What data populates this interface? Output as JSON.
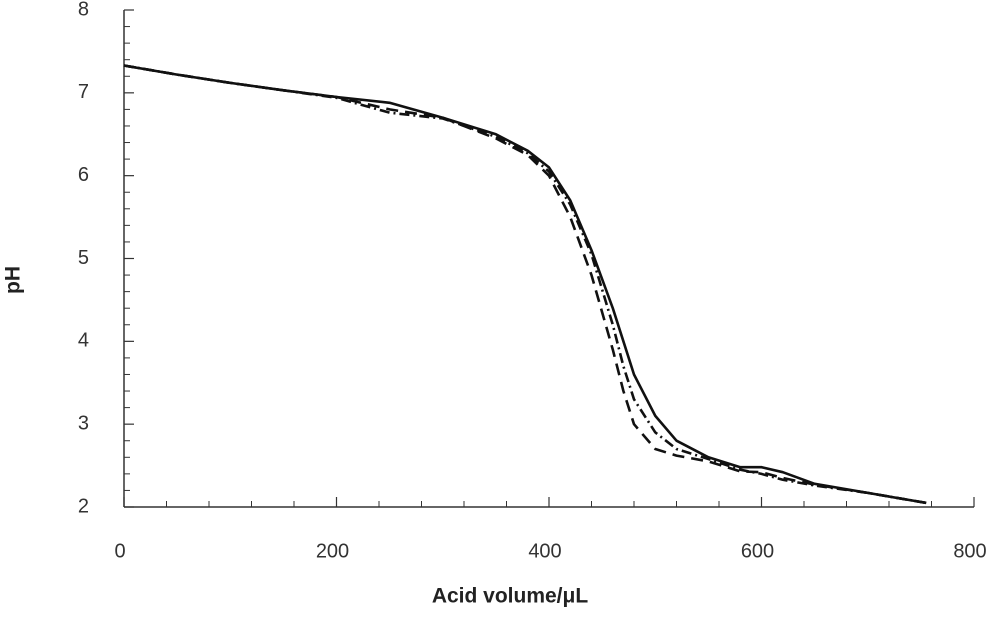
{
  "chart_data": {
    "type": "line",
    "x_label": "Acid volume/μL",
    "y_label": "pH",
    "x": [
      0,
      50,
      100,
      150,
      200,
      250,
      300,
      350,
      380,
      400,
      420,
      440,
      460,
      470,
      480,
      500,
      520,
      550,
      580,
      600,
      620,
      650,
      700,
      755
    ],
    "series": [
      {
        "color": "#111111",
        "dash": "none",
        "values": [
          7.33,
          7.22,
          7.12,
          7.03,
          6.95,
          6.88,
          6.7,
          6.5,
          6.3,
          6.1,
          5.7,
          5.1,
          4.4,
          4.0,
          3.6,
          3.1,
          2.8,
          2.6,
          2.48,
          2.48,
          2.42,
          2.28,
          2.17,
          2.05
        ]
      },
      {
        "color": "#111111",
        "dash": "12 7",
        "values": [
          7.33,
          7.22,
          7.12,
          7.03,
          6.95,
          6.8,
          6.7,
          6.45,
          6.25,
          6.0,
          5.5,
          4.8,
          3.9,
          3.4,
          3.0,
          2.7,
          2.62,
          2.55,
          2.43,
          2.42,
          2.35,
          2.27,
          2.17,
          2.05
        ]
      },
      {
        "color": "#111111",
        "dash": "10 4 2 4",
        "values": [
          7.33,
          7.22,
          7.12,
          7.03,
          6.94,
          6.76,
          6.69,
          6.47,
          6.27,
          6.05,
          5.65,
          5.05,
          4.2,
          3.7,
          3.3,
          2.9,
          2.7,
          2.58,
          2.45,
          2.4,
          2.33,
          2.26,
          2.17,
          2.05
        ]
      }
    ],
    "xlim": [
      0,
      800
    ],
    "xticks": [
      0,
      200,
      400,
      600,
      800
    ],
    "xminorticks": [
      40,
      80,
      120,
      160,
      240,
      280,
      320,
      360,
      440,
      480,
      520,
      560,
      640,
      680,
      720,
      760
    ],
    "ylim": [
      2,
      8
    ],
    "yticks": [
      2,
      3,
      4,
      5,
      6,
      7,
      8
    ],
    "yminorticks": [
      2.2,
      2.4,
      2.6,
      2.8,
      3.2,
      3.4,
      3.6,
      3.8,
      4.2,
      4.4,
      4.6,
      4.8,
      5.2,
      5.4,
      5.6,
      5.8,
      6.2,
      6.4,
      6.6,
      6.8,
      7.2,
      7.4,
      7.6,
      7.8
    ]
  }
}
